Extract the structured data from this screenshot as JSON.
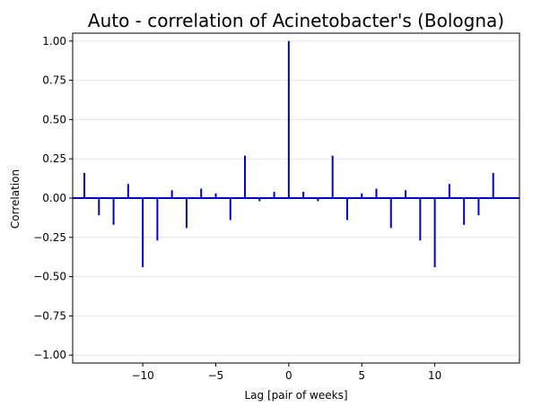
{
  "chart_data": {
    "type": "bar",
    "title": "Auto - correlation of Acinetobacter's (Bologna)",
    "xlabel": "Lag [pair of weeks]",
    "ylabel": "Correlation",
    "xlim": [
      -14.8,
      15.8
    ],
    "ylim": [
      -1.05,
      1.05
    ],
    "grid": "horizontal",
    "x": [
      -14,
      -13,
      -12,
      -11,
      -10,
      -9,
      -8,
      -7,
      -6,
      -5,
      -4,
      -3,
      -2,
      -1,
      0,
      1,
      2,
      3,
      4,
      5,
      6,
      7,
      8,
      9,
      10,
      11,
      12,
      13,
      14
    ],
    "values": [
      0.16,
      -0.11,
      -0.17,
      0.09,
      -0.44,
      -0.27,
      0.05,
      -0.19,
      0.06,
      0.03,
      -0.14,
      0.27,
      -0.02,
      0.04,
      1.0,
      0.04,
      -0.02,
      0.27,
      -0.14,
      0.03,
      0.06,
      -0.19,
      0.05,
      -0.27,
      -0.44,
      0.09,
      -0.17,
      -0.11,
      0.16
    ],
    "x_ticks": [
      -10,
      -5,
      0,
      5,
      10
    ],
    "x_tick_labels": [
      "−10",
      "−5",
      "0",
      "5",
      "10"
    ],
    "y_ticks": [
      -1.0,
      -0.75,
      -0.5,
      -0.25,
      0.0,
      0.25,
      0.5,
      0.75,
      1.0
    ],
    "y_tick_labels": [
      "−1.00",
      "−0.75",
      "−0.50",
      "−0.25",
      "0.00",
      "0.25",
      "0.50",
      "0.75",
      "1.00"
    ],
    "colors": {
      "bars": "#0000c8",
      "zero_line": "#0000c8",
      "grid": "#e6e6e6",
      "axes": "#000000"
    }
  }
}
